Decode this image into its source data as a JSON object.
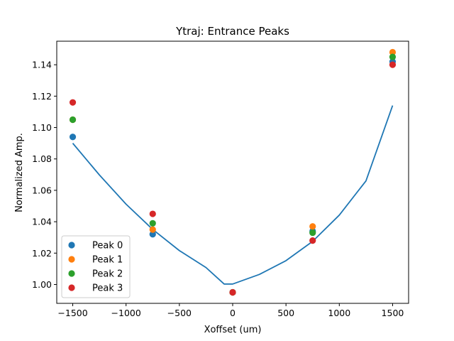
{
  "chart_data": {
    "type": "scatter",
    "title": "Ytraj: Entrance Peaks",
    "xlabel": "Xoffset (um)",
    "ylabel": "Normalized Amp.",
    "xlim": [
      -1650,
      1650
    ],
    "ylim": [
      0.988,
      1.155
    ],
    "xticks": [
      -1500,
      -1000,
      -500,
      0,
      500,
      1000,
      1500
    ],
    "xtick_labels": [
      "−1500",
      "−1000",
      "−500",
      "0",
      "500",
      "1000",
      "1500"
    ],
    "yticks": [
      1.0,
      1.02,
      1.04,
      1.06,
      1.08,
      1.1,
      1.12,
      1.14
    ],
    "ytick_labels": [
      "1.00",
      "1.02",
      "1.04",
      "1.06",
      "1.08",
      "1.10",
      "1.12",
      "1.14"
    ],
    "grid": false,
    "legend_position": "lower-left",
    "series": [
      {
        "name": "Peak 0",
        "color": "#1f77b4",
        "x": [
          -1500,
          -750,
          0,
          750,
          1500
        ],
        "y": [
          1.094,
          1.032,
          0.995,
          1.034,
          1.142
        ]
      },
      {
        "name": "Peak 1",
        "color": "#ff7f0e",
        "x": [
          -1500,
          -750,
          0,
          750,
          1500
        ],
        "y": [
          1.105,
          1.035,
          0.995,
          1.037,
          1.148
        ]
      },
      {
        "name": "Peak 2",
        "color": "#2ca02c",
        "x": [
          -1500,
          -750,
          0,
          750,
          1500
        ],
        "y": [
          1.105,
          1.039,
          0.995,
          1.033,
          1.145
        ]
      },
      {
        "name": "Peak 3",
        "color": "#d62728",
        "x": [
          -1500,
          -750,
          0,
          750,
          1500
        ],
        "y": [
          1.116,
          1.045,
          0.995,
          1.028,
          1.14
        ]
      }
    ],
    "fit": {
      "type": "line",
      "color": "#1f77b4",
      "x": [
        -1500,
        -1250,
        -1000,
        -750,
        -500,
        -250,
        -80,
        0,
        250,
        500,
        750,
        1000,
        1250,
        1500
      ],
      "y": [
        1.09,
        1.0698,
        1.0512,
        1.0351,
        1.0216,
        1.0108,
        1.0003,
        1.0003,
        1.0064,
        1.0152,
        1.0275,
        1.0442,
        1.066,
        1.114
      ]
    }
  }
}
